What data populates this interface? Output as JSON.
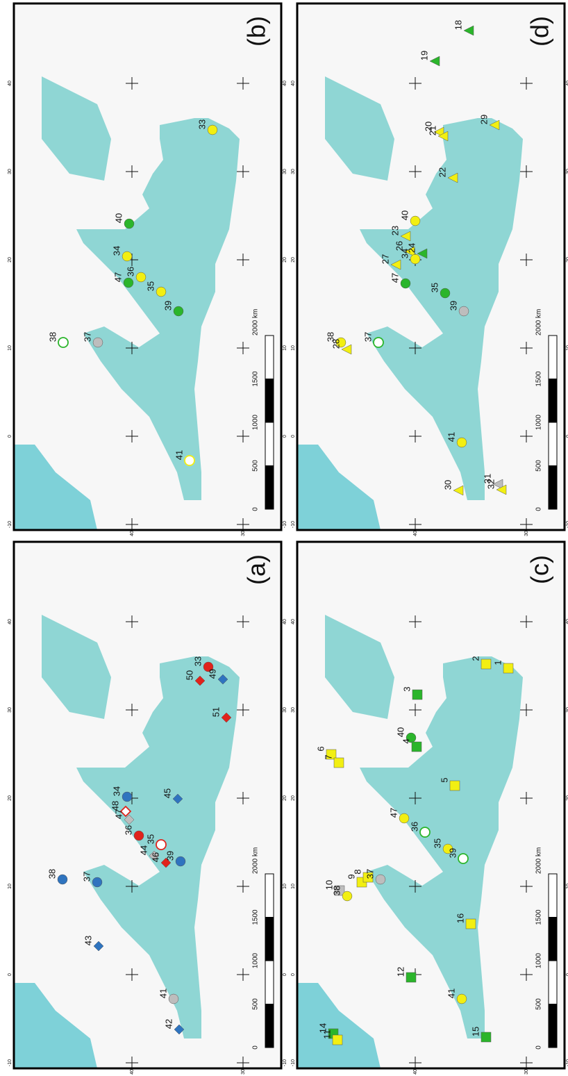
{
  "panels": [
    {
      "label": "(a)",
      "sites": [
        {
          "label": "33",
          "shape": "circle",
          "color": "#e0231c",
          "open": false
        },
        {
          "label": "50",
          "shape": "diamond",
          "color": "#e0231c",
          "open": false
        },
        {
          "label": "49",
          "shape": "diamond",
          "color": "#2f74bf",
          "open": false
        },
        {
          "label": "51",
          "shape": "diamond",
          "color": "#e0231c",
          "open": false
        },
        {
          "label": "34",
          "shape": "circle",
          "color": "#2f74bf",
          "open": false
        },
        {
          "label": "48",
          "shape": "diamond",
          "color": "#e0231c",
          "open": true
        },
        {
          "label": "47",
          "shape": "diamond",
          "color": "#bdbdbd",
          "open": false
        },
        {
          "label": "36",
          "shape": "circle",
          "color": "#e0231c",
          "open": false
        },
        {
          "label": "45",
          "shape": "diamond",
          "color": "#2f74bf",
          "open": false
        },
        {
          "label": "35",
          "shape": "circle",
          "color": "#e0231c",
          "open": true
        },
        {
          "label": "44",
          "shape": "diamond",
          "color": "#bdbdbd",
          "open": false
        },
        {
          "label": "46",
          "shape": "diamond",
          "color": "#e0231c",
          "open": false
        },
        {
          "label": "39",
          "shape": "circle",
          "color": "#2f74bf",
          "open": false
        },
        {
          "label": "38",
          "shape": "circle",
          "color": "#2f74bf",
          "open": false
        },
        {
          "label": "37",
          "shape": "circle",
          "color": "#2f74bf",
          "open": false
        },
        {
          "label": "43",
          "shape": "diamond",
          "color": "#2f74bf",
          "open": false
        },
        {
          "label": "41",
          "shape": "circle",
          "color": "#bdbdbd",
          "open": false
        },
        {
          "label": "42",
          "shape": "diamond",
          "color": "#2f74bf",
          "open": false
        }
      ]
    },
    {
      "label": "(b)",
      "sites": [
        {
          "label": "33",
          "shape": "circle",
          "color": "#f2ef12",
          "open": false
        },
        {
          "label": "40",
          "shape": "circle",
          "color": "#2bb52b",
          "open": false
        },
        {
          "label": "34",
          "shape": "circle",
          "color": "#f2ef12",
          "open": false
        },
        {
          "label": "47",
          "shape": "circle",
          "color": "#2bb52b",
          "open": false
        },
        {
          "label": "36",
          "shape": "circle",
          "color": "#f2ef12",
          "open": false
        },
        {
          "label": "35",
          "shape": "circle",
          "color": "#f2ef12",
          "open": false
        },
        {
          "label": "39",
          "shape": "circle",
          "color": "#2bb52b",
          "open": false
        },
        {
          "label": "37",
          "shape": "circle",
          "color": "#bdbdbd",
          "open": false
        },
        {
          "label": "38",
          "shape": "circle",
          "color": "#2bb52b",
          "open": true
        },
        {
          "label": "41",
          "shape": "circle",
          "color": "#f2ef12",
          "open": true
        }
      ]
    },
    {
      "label": "(c)",
      "sites": [
        {
          "label": "2",
          "shape": "square",
          "color": "#f2ef12",
          "open": false
        },
        {
          "label": "1",
          "shape": "square",
          "color": "#f2ef12",
          "open": false
        },
        {
          "label": "3",
          "shape": "square",
          "color": "#2bb52b",
          "open": false
        },
        {
          "label": "6",
          "shape": "square",
          "color": "#f2ef12",
          "open": false
        },
        {
          "label": "7",
          "shape": "square",
          "color": "#f2ef12",
          "open": false
        },
        {
          "label": "40",
          "shape": "circle",
          "color": "#2bb52b",
          "open": false
        },
        {
          "label": "4",
          "shape": "square",
          "color": "#2bb52b",
          "open": false
        },
        {
          "label": "5",
          "shape": "square",
          "color": "#f2ef12",
          "open": false
        },
        {
          "label": "47",
          "shape": "circle",
          "color": "#f2ef12",
          "open": false
        },
        {
          "label": "36",
          "shape": "circle",
          "color": "#2bb52b",
          "open": true
        },
        {
          "label": "35",
          "shape": "circle",
          "color": "#f2ef12",
          "open": false
        },
        {
          "label": "39",
          "shape": "circle",
          "color": "#2bb52b",
          "open": true
        },
        {
          "label": "10",
          "shape": "square",
          "color": "#bdbdbd",
          "open": false
        },
        {
          "label": "38",
          "shape": "circle",
          "color": "#f2ef12",
          "open": false
        },
        {
          "label": "9",
          "shape": "square",
          "color": "#f2ef12",
          "open": false
        },
        {
          "label": "8",
          "shape": "square",
          "color": "#f2ef12",
          "open": false
        },
        {
          "label": "37",
          "shape": "circle",
          "color": "#bdbdbd",
          "open": false
        },
        {
          "label": "16",
          "shape": "square",
          "color": "#f2ef12",
          "open": false
        },
        {
          "label": "12",
          "shape": "square",
          "color": "#2bb52b",
          "open": false
        },
        {
          "label": "14",
          "shape": "square",
          "color": "#2bb52b",
          "open": false
        },
        {
          "label": "11",
          "shape": "square",
          "color": "#f2ef12",
          "open": false
        },
        {
          "label": "41",
          "shape": "circle",
          "color": "#f2ef12",
          "open": false
        },
        {
          "label": "15",
          "shape": "square",
          "color": "#2bb52b",
          "open": false
        }
      ]
    },
    {
      "label": "(d)",
      "sites": [
        {
          "label": "18",
          "shape": "triangle",
          "color": "#2bb52b",
          "open": false
        },
        {
          "label": "19",
          "shape": "triangle",
          "color": "#2bb52b",
          "open": false
        },
        {
          "label": "20",
          "shape": "triangle",
          "color": "#f2ef12",
          "open": false
        },
        {
          "label": "21",
          "shape": "triangle",
          "color": "#f2ef12",
          "open": false
        },
        {
          "label": "29",
          "shape": "triangle",
          "color": "#f2ef12",
          "open": false
        },
        {
          "label": "22",
          "shape": "triangle",
          "color": "#f2ef12",
          "open": false
        },
        {
          "label": "40",
          "shape": "circle",
          "color": "#f2ef12",
          "open": false
        },
        {
          "label": "23",
          "shape": "triangle",
          "color": "#f2ef12",
          "open": false
        },
        {
          "label": "26",
          "shape": "triangle",
          "color": "#f2ef12",
          "open": false
        },
        {
          "label": "24",
          "shape": "triangle",
          "color": "#2bb52b",
          "open": false
        },
        {
          "label": "34",
          "shape": "circle",
          "color": "#f2ef12",
          "open": false
        },
        {
          "label": "27",
          "shape": "triangle",
          "color": "#f2ef12",
          "open": false
        },
        {
          "label": "47",
          "shape": "circle",
          "color": "#2bb52b",
          "open": false
        },
        {
          "label": "35",
          "shape": "circle",
          "color": "#2bb52b",
          "open": false
        },
        {
          "label": "39",
          "shape": "circle",
          "color": "#bdbdbd",
          "open": false
        },
        {
          "label": "38",
          "shape": "circle",
          "color": "#f2ef12",
          "open": false
        },
        {
          "label": "28",
          "shape": "triangle",
          "color": "#f2ef12",
          "open": false
        },
        {
          "label": "37",
          "shape": "circle",
          "color": "#2bb52b",
          "open": true
        },
        {
          "label": "41",
          "shape": "circle",
          "color": "#f2ef12",
          "open": false
        },
        {
          "label": "30",
          "shape": "triangle",
          "color": "#f2ef12",
          "open": false
        },
        {
          "label": "31",
          "shape": "triangle",
          "color": "#bdbdbd",
          "open": false
        },
        {
          "label": "32",
          "shape": "triangle",
          "color": "#f2ef12",
          "open": false
        }
      ]
    }
  ],
  "lon_ticks": [
    "40",
    "30",
    "20",
    "10",
    "0",
    "-10"
  ],
  "lat_ticks": [
    "40",
    "30"
  ],
  "scale_labels": [
    "0",
    "500",
    "1000",
    "1500",
    "2000 km"
  ]
}
